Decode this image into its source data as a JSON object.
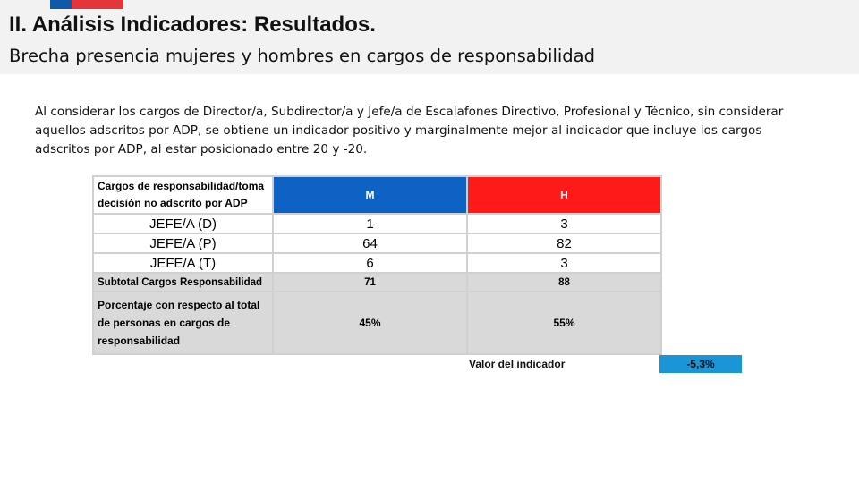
{
  "header": {
    "title": "II. Análisis Indicadores: Resultados.",
    "subtitle": "Brecha presencia mujeres y hombres en cargos de responsabilidad",
    "flag_colors": [
      "#0f5aa8",
      "#e6353a"
    ]
  },
  "intro": "Al considerar los cargos de Director/a, Subdirector/a y Jefe/a de Escalafones Directivo, Profesional y Técnico, sin considerar aquellos adscritos por ADP, se obtiene un indicador positivo y marginalmente mejor al indicador que incluye los cargos adscritos por ADP, al estar posicionado entre 20 y -20.",
  "table": {
    "header": {
      "label": "Cargos de responsabilidad/toma decisión no adscrito por ADP",
      "m": "M",
      "h": "H",
      "m_color": "#0d62c4",
      "h_color": "#ff1a1a"
    },
    "rows": [
      {
        "label": "JEFE/A (D)",
        "m": "1",
        "h": "3"
      },
      {
        "label": "JEFE/A (P)",
        "m": "64",
        "h": "82"
      },
      {
        "label": "JEFE/A (T)",
        "m": "6",
        "h": "3"
      }
    ],
    "subtotal": {
      "label": "Subtotal Cargos Responsabilidad",
      "m": "71",
      "h": "88"
    },
    "percent": {
      "label": "Porcentaje con respecto al total de personas en cargos de responsabilidad",
      "m": "45%",
      "h": "55%"
    }
  },
  "indicator": {
    "label": "Valor del indicador",
    "value": "-5,3%",
    "color": "#1995d8"
  }
}
